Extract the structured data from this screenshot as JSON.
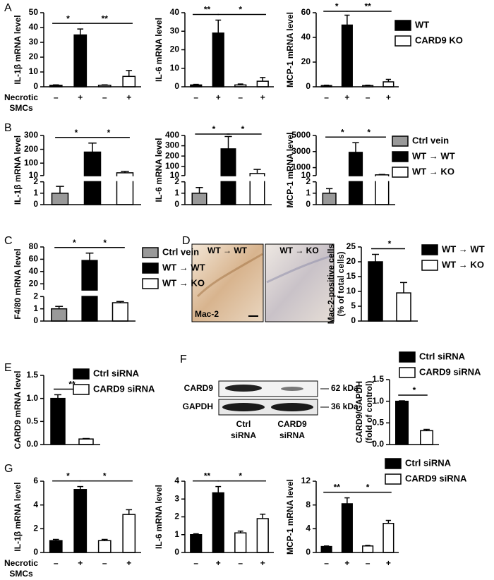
{
  "panel_labels": [
    "A",
    "B",
    "C",
    "D",
    "E",
    "F",
    "G"
  ],
  "chart_data": [
    {
      "type": "bar",
      "ylabel": "IL-1β mRNA level",
      "categories": [
        "–",
        "+",
        "–",
        "+"
      ],
      "xlabel": [
        "Necrotic",
        "SMCs"
      ],
      "values": [
        1,
        35,
        1,
        7
      ],
      "errors": [
        0.3,
        4,
        0.3,
        4
      ],
      "colors": [
        "#000000",
        "#000000",
        "#ffffff",
        "#ffffff"
      ],
      "ylim": [
        0,
        50
      ],
      "yticks": [
        0,
        10,
        20,
        30,
        40,
        50
      ],
      "significance": [
        {
          "label": "*",
          "between": [
            0,
            1
          ]
        },
        {
          "label": "**",
          "between": [
            1,
            3
          ]
        }
      ]
    },
    {
      "type": "bar",
      "ylabel": "IL-6 mRNA level",
      "categories": [
        "–",
        "+",
        "–",
        "+"
      ],
      "values": [
        1,
        29,
        1,
        3
      ],
      "errors": [
        0.3,
        7,
        0.5,
        2
      ],
      "colors": [
        "#000000",
        "#000000",
        "#ffffff",
        "#ffffff"
      ],
      "ylim": [
        0,
        40
      ],
      "yticks": [
        0,
        10,
        20,
        30,
        40
      ],
      "significance": [
        {
          "label": "**",
          "between": [
            0,
            1
          ]
        },
        {
          "label": "*",
          "between": [
            1,
            3
          ]
        }
      ]
    },
    {
      "type": "bar",
      "ylabel": "MCP-1 mRNA level",
      "categories": [
        "–",
        "+",
        "–",
        "+"
      ],
      "values": [
        1,
        50,
        1,
        4
      ],
      "errors": [
        0.3,
        8,
        0.3,
        2
      ],
      "colors": [
        "#000000",
        "#000000",
        "#ffffff",
        "#ffffff"
      ],
      "ylim": [
        0,
        60
      ],
      "yticks": [
        0,
        20,
        40,
        60
      ],
      "significance": [
        {
          "label": "*",
          "between": [
            0,
            1
          ]
        },
        {
          "label": "**",
          "between": [
            1,
            3
          ]
        }
      ]
    },
    {
      "type": "broken_bar",
      "ylabel": "IL-1β mRNA level",
      "values": [
        1,
        180,
        30
      ],
      "errors": [
        0.6,
        65,
        10
      ],
      "colors": [
        "#999999",
        "#000000",
        "#ffffff"
      ],
      "ylim": [
        0,
        300
      ],
      "axis_break": [
        2,
        10
      ],
      "yticks": [
        0,
        1,
        2,
        10,
        100,
        200,
        300
      ],
      "significance": [
        {
          "label": "*",
          "between": [
            0,
            1
          ]
        },
        {
          "label": "*",
          "between": [
            1,
            2
          ]
        }
      ]
    },
    {
      "type": "broken_bar",
      "ylabel": "IL-6 mRNA level",
      "values": [
        1,
        270,
        30
      ],
      "errors": [
        0.5,
        120,
        40
      ],
      "colors": [
        "#999999",
        "#000000",
        "#ffffff"
      ],
      "ylim": [
        0,
        400
      ],
      "axis_break": [
        2,
        10
      ],
      "yticks": [
        0,
        1,
        2,
        10,
        100,
        200,
        300,
        400
      ],
      "significance": [
        {
          "label": "*",
          "between": [
            0,
            1
          ]
        },
        {
          "label": "*",
          "between": [
            1,
            2
          ]
        }
      ]
    },
    {
      "type": "broken_bar",
      "ylabel": "MCP-1 mRNA level",
      "values": [
        1,
        2900,
        100
      ],
      "errors": [
        0.4,
        1200,
        50
      ],
      "colors": [
        "#999999",
        "#000000",
        "#ffffff"
      ],
      "ylim": [
        0,
        5000
      ],
      "axis_break": [
        2,
        10
      ],
      "yticks": [
        0,
        1,
        2,
        10,
        1000,
        3000,
        5000
      ],
      "significance": [
        {
          "label": "*",
          "between": [
            0,
            1
          ]
        },
        {
          "label": "*",
          "between": [
            1,
            2
          ]
        }
      ]
    },
    {
      "type": "broken_bar",
      "ylabel": "F4/80 mRNA level",
      "values": [
        1,
        58,
        1.5
      ],
      "errors": [
        0.2,
        12,
        0.1
      ],
      "colors": [
        "#999999",
        "#000000",
        "#ffffff"
      ],
      "ylim": [
        0,
        80
      ],
      "axis_break": [
        2,
        10
      ],
      "yticks": [
        0,
        1,
        2,
        20,
        40,
        60,
        80
      ],
      "significance": [
        {
          "label": "*",
          "between": [
            0,
            1
          ]
        },
        {
          "label": "*",
          "between": [
            1,
            2
          ]
        }
      ]
    },
    {
      "type": "bar",
      "ylabel": [
        "Mac-2-positive cells",
        "(% of total cells)"
      ],
      "values": [
        20,
        9.5
      ],
      "errors": [
        2.5,
        3.5
      ],
      "colors": [
        "#000000",
        "#ffffff"
      ],
      "ylim": [
        0,
        25
      ],
      "yticks": [
        0,
        5,
        10,
        15,
        20,
        25
      ],
      "significance": [
        {
          "label": "*",
          "between": [
            0,
            1
          ]
        }
      ]
    },
    {
      "type": "bar",
      "ylabel": "CARD9 mRNA level",
      "values": [
        1.0,
        0.12
      ],
      "errors": [
        0.08,
        0.01
      ],
      "colors": [
        "#000000",
        "#ffffff"
      ],
      "ylim": [
        0,
        1.5
      ],
      "yticks": [
        {
          "value": 0,
          "label": "0.0"
        },
        {
          "value": 0.5,
          "label": "0.5"
        },
        {
          "value": 1,
          "label": "1.0"
        },
        {
          "value": 1.5,
          "label": "1.5"
        }
      ],
      "significance": [
        {
          "label": "**",
          "between": [
            0,
            1
          ]
        }
      ]
    },
    {
      "type": "bar",
      "ylabel": [
        "CARD9/GAPDH",
        "(fold of control)"
      ],
      "values": [
        1.0,
        0.32
      ],
      "errors": [
        0.01,
        0.03
      ],
      "colors": [
        "#000000",
        "#ffffff"
      ],
      "ylim": [
        0,
        1.5
      ],
      "yticks": [
        {
          "value": 0,
          "label": "0.0"
        },
        {
          "value": 0.5,
          "label": "0.5"
        },
        {
          "value": 1,
          "label": "1.0"
        },
        {
          "value": 1.5,
          "label": "1.5"
        }
      ],
      "significance": [
        {
          "label": "*",
          "between": [
            0,
            1
          ]
        }
      ]
    },
    {
      "type": "bar",
      "ylabel": "IL-1β mRNA level",
      "categories": [
        "–",
        "+",
        "–",
        "+"
      ],
      "xlabel": [
        "Necrotic",
        "SMCs"
      ],
      "values": [
        1.0,
        5.3,
        1.0,
        3.2
      ],
      "errors": [
        0.1,
        0.25,
        0.1,
        0.4
      ],
      "colors": [
        "#000000",
        "#000000",
        "#ffffff",
        "#ffffff"
      ],
      "ylim": [
        0,
        6
      ],
      "yticks": [
        0,
        2,
        4,
        6
      ],
      "significance": [
        {
          "label": "*",
          "between": [
            0,
            1
          ]
        },
        {
          "label": "*",
          "between": [
            1,
            3
          ]
        }
      ]
    },
    {
      "type": "bar",
      "ylabel": "IL-6 mRNA level",
      "categories": [
        "–",
        "+",
        "–",
        "+"
      ],
      "values": [
        1.0,
        3.35,
        1.1,
        1.9
      ],
      "errors": [
        0.05,
        0.35,
        0.1,
        0.25
      ],
      "colors": [
        "#000000",
        "#000000",
        "#ffffff",
        "#ffffff"
      ],
      "ylim": [
        0,
        4
      ],
      "yticks": [
        0,
        1,
        2,
        3,
        4
      ],
      "significance": [
        {
          "label": "**",
          "between": [
            0,
            1
          ]
        },
        {
          "label": "*",
          "between": [
            1,
            3
          ]
        }
      ]
    },
    {
      "type": "bar",
      "ylabel": "MCP-1 mRNA level",
      "categories": [
        "–",
        "+",
        "–",
        "+"
      ],
      "values": [
        1.0,
        8.2,
        1.1,
        4.9
      ],
      "errors": [
        0.1,
        1.0,
        0.1,
        0.5
      ],
      "colors": [
        "#000000",
        "#000000",
        "#ffffff",
        "#ffffff"
      ],
      "ylim": [
        0,
        12
      ],
      "yticks": [
        0,
        4,
        8,
        12
      ],
      "significance": [
        {
          "label": "**",
          "between": [
            0,
            1
          ]
        },
        {
          "label": "*",
          "between": [
            1,
            3
          ]
        }
      ]
    }
  ],
  "legends": [
    {
      "entries": [
        {
          "name": "WT",
          "color": "#000000"
        },
        {
          "name": "CARD9 KO",
          "color": "#ffffff"
        }
      ]
    },
    {
      "entries": [
        {
          "name": "Ctrl vein",
          "color": "#999999"
        },
        {
          "name": "WT → WT",
          "color": "#000000"
        },
        {
          "name": "WT → KO",
          "color": "#ffffff"
        }
      ]
    },
    {
      "entries": [
        {
          "name": "Ctrl vein",
          "color": "#999999"
        },
        {
          "name": "WT → WT",
          "color": "#000000"
        },
        {
          "name": "WT → KO",
          "color": "#ffffff"
        }
      ]
    },
    {
      "entries": [
        {
          "name": "WT → WT",
          "color": "#000000"
        },
        {
          "name": "WT → KO",
          "color": "#ffffff"
        }
      ]
    },
    {
      "entries": [
        {
          "name": "Ctrl siRNA",
          "color": "#000000"
        },
        {
          "name": "CARD9 siRNA",
          "color": "#ffffff"
        }
      ]
    },
    {
      "entries": [
        {
          "name": "Ctrl siRNA",
          "color": "#000000"
        },
        {
          "name": "CARD9 siRNA",
          "color": "#ffffff"
        }
      ]
    },
    {
      "entries": [
        {
          "name": "Ctrl siRNA",
          "color": "#000000"
        },
        {
          "name": "CARD9 siRNA",
          "color": "#ffffff"
        }
      ]
    }
  ],
  "micrographs": {
    "titles": [
      "WT → WT",
      "WT → KO"
    ],
    "stain": "Mac-2"
  },
  "blot": {
    "rows": [
      "CARD9",
      "GAPDH"
    ],
    "markers": [
      "62 kDa",
      "36 kDa"
    ],
    "lanes": [
      [
        "Ctrl",
        "siRNA"
      ],
      [
        "CARD9",
        "siRNA"
      ]
    ]
  }
}
